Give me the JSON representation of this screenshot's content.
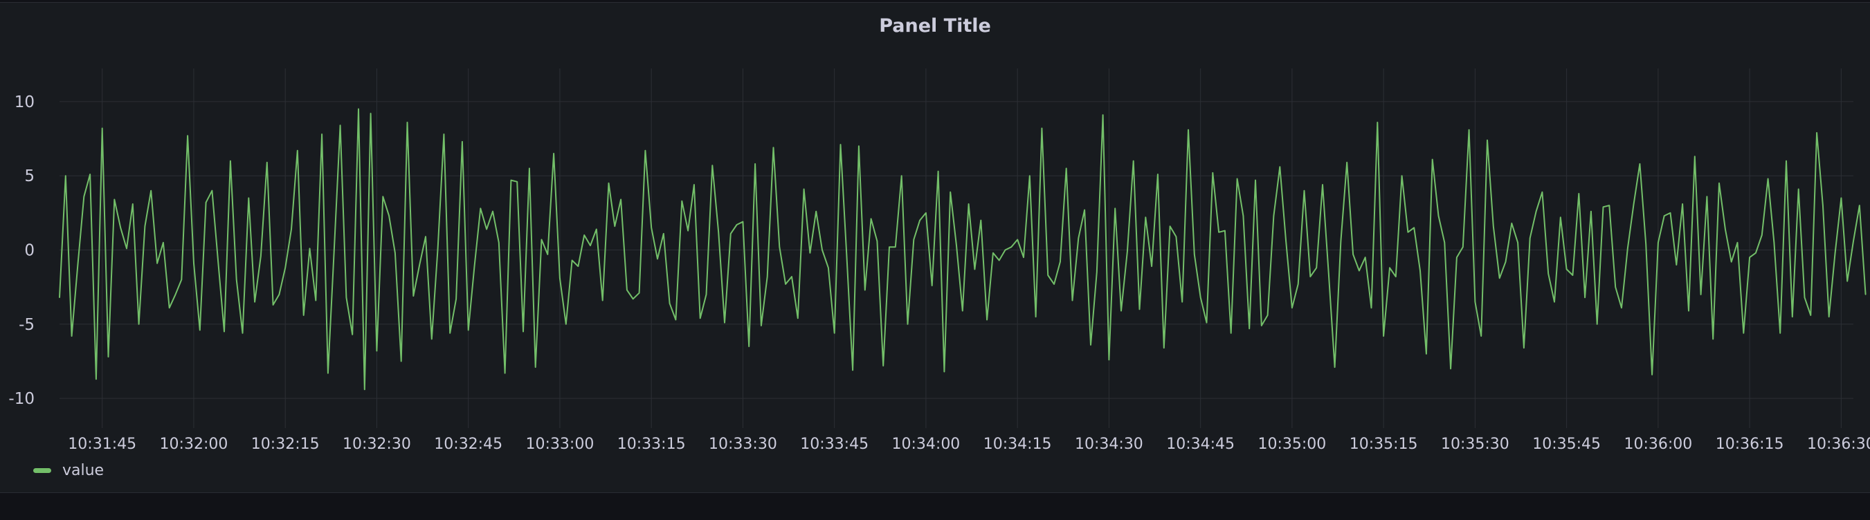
{
  "panel": {
    "title": "Panel Title"
  },
  "colors": {
    "series": "#73bf69",
    "text": "#ccccdc",
    "grid": "#2c2f35"
  },
  "chart_data": {
    "type": "line",
    "title": "Panel Title",
    "xlabel": "",
    "ylabel": "",
    "ylim": [
      -12,
      12
    ],
    "yticks": [
      10,
      5,
      0,
      -5,
      -10
    ],
    "xlim": [
      "10:31:38",
      "10:36:32"
    ],
    "xticks": [
      "10:31:45",
      "10:32:00",
      "10:32:15",
      "10:32:30",
      "10:32:45",
      "10:33:00",
      "10:33:15",
      "10:33:30",
      "10:33:45",
      "10:34:00",
      "10:34:15",
      "10:34:30",
      "10:34:45",
      "10:35:00",
      "10:35:15",
      "10:35:30",
      "10:35:45",
      "10:36:00",
      "10:36:15",
      "10:36:30"
    ],
    "grid": true,
    "legend": "bottom-left",
    "interval_seconds": 1,
    "series": [
      {
        "name": "value",
        "x_start": "10:31:38",
        "values": [
          -3.2,
          5.0,
          -5.8,
          -1.0,
          3.6,
          5.1,
          -8.7,
          8.2,
          -7.2,
          3.4,
          1.5,
          0.1,
          3.1,
          -5.0,
          1.6,
          4.0,
          -0.9,
          0.5,
          -3.9,
          -3.0,
          -2.0,
          7.7,
          -0.9,
          -5.4,
          3.2,
          4.0,
          -0.8,
          -5.5,
          6.0,
          -2.0,
          -5.6,
          3.5,
          -3.5,
          -0.4,
          5.9,
          -3.7,
          -3.0,
          -1.2,
          1.4,
          6.7,
          -4.4,
          0.1,
          -3.4,
          7.8,
          -8.3,
          -0.1,
          8.4,
          -3.2,
          -5.7,
          9.5,
          -9.4,
          9.2,
          -6.8,
          3.6,
          2.3,
          -0.2,
          -7.5,
          8.6,
          -3.1,
          -1.0,
          0.9,
          -6.0,
          0.1,
          7.8,
          -5.6,
          -3.3,
          7.3,
          -5.4,
          -1.1,
          2.8,
          1.4,
          2.6,
          0.5,
          -8.3,
          4.7,
          4.6,
          -5.5,
          5.5,
          -7.9,
          0.7,
          -0.3,
          6.5,
          -1.9,
          -5.0,
          -0.7,
          -1.1,
          1.0,
          0.3,
          1.4,
          -3.4,
          4.5,
          1.6,
          3.4,
          -2.7,
          -3.3,
          -2.9,
          6.7,
          1.5,
          -0.6,
          1.1,
          -3.6,
          -4.7,
          3.3,
          1.3,
          4.4,
          -4.6,
          -3.0,
          5.7,
          1.2,
          -4.9,
          1.1,
          1.7,
          1.9,
          -6.5,
          5.8,
          -5.1,
          -1.8,
          6.9,
          0.2,
          -2.3,
          -1.8,
          -4.6,
          4.1,
          -0.2,
          2.6,
          0.0,
          -1.2,
          -5.6,
          7.1,
          -0.3,
          -8.1,
          7.0,
          -2.7,
          2.1,
          0.6,
          -7.8,
          0.2,
          0.2,
          5.0,
          -5.0,
          0.7,
          2.0,
          2.5,
          -2.4,
          5.3,
          -8.2,
          3.9,
          0.3,
          -4.1,
          3.1,
          -1.3,
          2.0,
          -4.7,
          -0.2,
          -0.7,
          0.0,
          0.2,
          0.7,
          -0.5,
          5.0,
          -4.5,
          8.2,
          -1.7,
          -2.3,
          -0.8,
          5.5,
          -3.4,
          0.8,
          2.7,
          -6.4,
          -1.5,
          9.1,
          -7.4,
          2.8,
          -4.1,
          -0.1,
          6.0,
          -4.0,
          2.2,
          -1.1,
          5.1,
          -6.6,
          1.6,
          0.9,
          -3.5,
          8.1,
          -0.3,
          -3.2,
          -4.9,
          5.2,
          1.2,
          1.3,
          -5.6,
          4.8,
          2.3,
          -5.3,
          4.7,
          -5.1,
          -4.4,
          2.3,
          5.6,
          0.6,
          -3.9,
          -2.3,
          4.0,
          -1.8,
          -1.2,
          4.4,
          -1.6,
          -7.9,
          0.6,
          5.9,
          -0.3,
          -1.4,
          -0.5,
          -3.9,
          8.6,
          -5.8,
          -1.2,
          -1.8,
          5.0,
          1.2,
          1.5,
          -1.4,
          -7.0,
          6.1,
          2.3,
          0.5,
          -8.0,
          -0.5,
          0.2,
          8.1,
          -3.5,
          -5.8,
          7.4,
          1.6,
          -1.9,
          -0.8,
          1.8,
          0.5,
          -6.6,
          0.8,
          2.6,
          3.9,
          -1.6,
          -3.5,
          2.2,
          -1.3,
          -1.7,
          3.8,
          -3.2,
          2.6,
          -5.0,
          2.9,
          3.0,
          -2.5,
          -3.9,
          0.1,
          3.1,
          5.8,
          0.4,
          -8.4,
          0.5,
          2.3,
          2.5,
          -1.0,
          3.1,
          -4.1,
          6.3,
          -3.0,
          3.6,
          -6.0,
          4.5,
          1.4,
          -0.8,
          0.5,
          -5.6,
          -0.5,
          -0.2,
          1.0,
          4.8,
          0.5,
          -5.6,
          6.0,
          -4.5,
          4.1,
          -3.2,
          -4.4,
          7.9,
          3.0,
          -4.5,
          -0.2,
          3.5,
          -2.1,
          0.6,
          3.0,
          -3.0
        ]
      }
    ]
  }
}
